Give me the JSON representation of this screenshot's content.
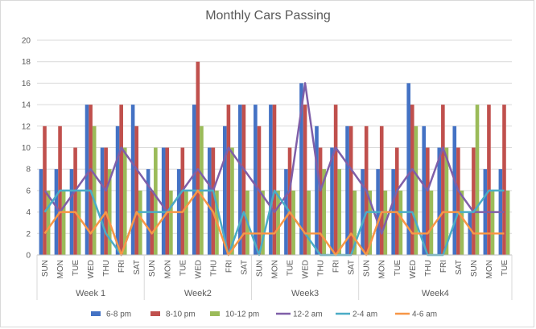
{
  "chart_data": {
    "type": "bar",
    "title": "Monthly Cars Passing",
    "xlabel": "",
    "ylabel": "",
    "ylim": [
      0,
      20
    ],
    "yticks": [
      0,
      2,
      4,
      6,
      8,
      10,
      12,
      14,
      16,
      18,
      20
    ],
    "grid": true,
    "legend_position": "bottom",
    "categories": [
      "SUN",
      "MON",
      "TUE",
      "WED",
      "THU",
      "FRI",
      "SAT",
      "SUN",
      "MON",
      "TUE",
      "WED",
      "THU",
      "FRI",
      "SAT",
      "SUN",
      "MON",
      "TUE",
      "WED",
      "THU",
      "FRI",
      "SAT",
      "SUN",
      "MON",
      "TUE",
      "WED",
      "THU",
      "FRI",
      "SAT",
      "SUN",
      "MON",
      "TUE"
    ],
    "groups": [
      {
        "label": "Week 1",
        "count": 7
      },
      {
        "label": "Week2",
        "count": 7
      },
      {
        "label": "Week3",
        "count": 7
      },
      {
        "label": "Week4",
        "count": 10
      }
    ],
    "series": [
      {
        "name": "6-8 pm",
        "type": "bar",
        "color": "#4472C4",
        "values": [
          8,
          8,
          8,
          14,
          10,
          12,
          14,
          8,
          10,
          8,
          14,
          10,
          12,
          14,
          14,
          14,
          8,
          16,
          12,
          10,
          12,
          8,
          8,
          8,
          16,
          12,
          10,
          12,
          4,
          8,
          8
        ]
      },
      {
        "name": "8-10 pm",
        "type": "bar",
        "color": "#C0504D",
        "values": [
          12,
          12,
          10,
          14,
          10,
          14,
          12,
          6,
          10,
          10,
          18,
          10,
          14,
          14,
          12,
          14,
          10,
          14,
          10,
          14,
          12,
          12,
          12,
          10,
          14,
          10,
          14,
          10,
          10,
          14,
          14
        ]
      },
      {
        "name": "10-12 pm",
        "type": "bar",
        "color": "#9BBB59",
        "values": [
          6,
          6,
          6,
          12,
          8,
          10,
          6,
          10,
          6,
          6,
          12,
          6,
          10,
          6,
          6,
          6,
          6,
          6,
          8,
          8,
          6,
          6,
          6,
          6,
          12,
          6,
          10,
          6,
          14,
          6,
          6
        ]
      },
      {
        "name": "12-2 am",
        "type": "line",
        "color": "#7F5FA8",
        "values": [
          6,
          4,
          6,
          8,
          6,
          10,
          8,
          6,
          4,
          6,
          8,
          6,
          10,
          8,
          6,
          4,
          6,
          16,
          6,
          10,
          8,
          6,
          2,
          6,
          8,
          6,
          10,
          6,
          4,
          4,
          4
        ]
      },
      {
        "name": "2-4 am",
        "type": "line",
        "color": "#4BACC6",
        "values": [
          4,
          6,
          6,
          6,
          2,
          0,
          4,
          4,
          4,
          6,
          6,
          6,
          0,
          4,
          0,
          6,
          4,
          2,
          0,
          0,
          0,
          4,
          4,
          4,
          4,
          0,
          0,
          4,
          4,
          6,
          6
        ]
      },
      {
        "name": "4-6 am",
        "type": "line",
        "color": "#F79646",
        "values": [
          2,
          4,
          4,
          2,
          4,
          0,
          4,
          2,
          4,
          4,
          6,
          4,
          0,
          2,
          2,
          2,
          4,
          2,
          2,
          0,
          2,
          0,
          4,
          4,
          2,
          2,
          4,
          4,
          2,
          2,
          2
        ]
      }
    ]
  }
}
